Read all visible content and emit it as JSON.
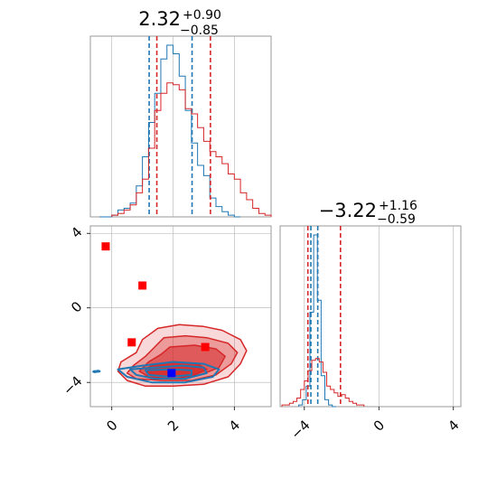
{
  "colors": {
    "red": "#d62728",
    "blue": "#1f77b4",
    "red_fill": "#d62728",
    "marker_red": "#ff0000",
    "marker_blue": "#0000ff",
    "grid": "#b0b0b0",
    "axes": "#808080"
  },
  "chart_data": [
    {
      "type": "histogram",
      "panel": "marginal-x",
      "title_main": "2.32",
      "title_plus": "+0.90",
      "title_minus": "−0.85",
      "xlim": [
        -0.7,
        5.2
      ],
      "grid": true,
      "series": [
        {
          "color": "blue",
          "bin_edges": [
            -0.4,
            -0.2,
            0.0,
            0.2,
            0.4,
            0.6,
            0.8,
            1.0,
            1.2,
            1.4,
            1.6,
            1.8,
            2.0,
            2.2,
            2.4,
            2.6,
            2.8,
            3.0,
            3.2,
            3.4,
            3.6,
            3.8,
            4.0,
            4.2
          ],
          "relative_heights": [
            0.0,
            0.0,
            0.01,
            0.04,
            0.05,
            0.08,
            0.18,
            0.35,
            0.55,
            0.72,
            0.92,
            1.0,
            0.95,
            0.82,
            0.62,
            0.43,
            0.3,
            0.24,
            0.11,
            0.06,
            0.03,
            0.01,
            0.0
          ],
          "quantile_lines": [
            1.22,
            2.62
          ]
        },
        {
          "color": "red",
          "bin_edges": [
            0.0,
            0.2,
            0.4,
            0.6,
            0.8,
            1.0,
            1.2,
            1.4,
            1.6,
            1.8,
            2.0,
            2.2,
            2.4,
            2.6,
            2.8,
            3.0,
            3.2,
            3.4,
            3.6,
            3.8,
            4.0,
            4.2,
            4.4,
            4.6,
            4.8,
            5.0,
            5.2
          ],
          "relative_heights": [
            0.01,
            0.02,
            0.04,
            0.07,
            0.14,
            0.22,
            0.4,
            0.62,
            0.72,
            0.78,
            0.77,
            0.74,
            0.63,
            0.6,
            0.52,
            0.44,
            0.38,
            0.35,
            0.31,
            0.25,
            0.22,
            0.14,
            0.1,
            0.05,
            0.02,
            0.01
          ],
          "quantile_lines": [
            1.47,
            3.22
          ]
        }
      ]
    },
    {
      "type": "contour",
      "panel": "joint",
      "xlim": [
        -0.7,
        5.2
      ],
      "ylim": [
        -5.3,
        4.4
      ],
      "xticks": [
        "0",
        "2",
        "4"
      ],
      "yticks": [
        "4",
        "0",
        "−4"
      ],
      "xtick_values": [
        0,
        2,
        4
      ],
      "ytick_values": [
        4,
        0,
        -4
      ],
      "grid": true,
      "red_contours": [
        {
          "level": 1,
          "points": [
            [
              1.5,
              -1.1
            ],
            [
              2.2,
              -0.9
            ],
            [
              3.0,
              -1.0
            ],
            [
              3.6,
              -1.2
            ],
            [
              4.2,
              -1.7
            ],
            [
              4.4,
              -2.3
            ],
            [
              4.2,
              -3.0
            ],
            [
              3.8,
              -3.7
            ],
            [
              3.0,
              -4.1
            ],
            [
              2.0,
              -4.2
            ],
            [
              1.1,
              -4.2
            ],
            [
              0.5,
              -3.9
            ],
            [
              0.2,
              -3.4
            ],
            [
              0.3,
              -2.9
            ],
            [
              0.8,
              -2.4
            ],
            [
              1.0,
              -1.7
            ]
          ]
        },
        {
          "level": 2,
          "points": [
            [
              1.7,
              -1.6
            ],
            [
              2.4,
              -1.5
            ],
            [
              3.1,
              -1.6
            ],
            [
              3.8,
              -1.9
            ],
            [
              4.1,
              -2.4
            ],
            [
              3.9,
              -3.0
            ],
            [
              3.4,
              -3.6
            ],
            [
              2.6,
              -3.9
            ],
            [
              1.6,
              -3.9
            ],
            [
              0.8,
              -3.8
            ],
            [
              0.5,
              -3.5
            ],
            [
              0.7,
              -3.1
            ],
            [
              1.1,
              -2.6
            ],
            [
              1.4,
              -2.1
            ]
          ]
        },
        {
          "level": 3,
          "points": [
            [
              1.9,
              -2.1
            ],
            [
              2.7,
              -2.0
            ],
            [
              3.4,
              -2.2
            ],
            [
              3.7,
              -2.6
            ],
            [
              3.5,
              -3.2
            ],
            [
              2.9,
              -3.6
            ],
            [
              2.0,
              -3.8
            ],
            [
              1.2,
              -3.7
            ],
            [
              0.9,
              -3.4
            ],
            [
              1.2,
              -2.9
            ],
            [
              1.6,
              -2.5
            ]
          ]
        },
        {
          "level": 4,
          "points": [
            [
              1.3,
              -3.1
            ],
            [
              2.0,
              -2.9
            ],
            [
              2.8,
              -3.0
            ],
            [
              3.1,
              -3.3
            ],
            [
              2.7,
              -3.6
            ],
            [
              1.9,
              -3.7
            ],
            [
              1.3,
              -3.6
            ],
            [
              1.1,
              -3.3
            ]
          ]
        }
      ],
      "blue_contours": [
        {
          "level": 1,
          "points": [
            [
              0.2,
              -3.3
            ],
            [
              1.0,
              -3.1
            ],
            [
              2.0,
              -2.9
            ],
            [
              3.0,
              -3.0
            ],
            [
              3.5,
              -3.3
            ],
            [
              3.3,
              -3.7
            ],
            [
              2.4,
              -4.0
            ],
            [
              1.3,
              -4.0
            ],
            [
              0.5,
              -3.7
            ]
          ]
        },
        {
          "level": 2,
          "points": [
            [
              0.6,
              -3.3
            ],
            [
              1.4,
              -3.2
            ],
            [
              2.3,
              -3.1
            ],
            [
              3.0,
              -3.2
            ],
            [
              3.1,
              -3.5
            ],
            [
              2.4,
              -3.8
            ],
            [
              1.4,
              -3.8
            ],
            [
              0.8,
              -3.6
            ]
          ]
        },
        {
          "level": 3,
          "points": [
            [
              1.1,
              -3.35
            ],
            [
              1.9,
              -3.3
            ],
            [
              2.6,
              -3.35
            ],
            [
              2.6,
              -3.6
            ],
            [
              1.9,
              -3.7
            ],
            [
              1.2,
              -3.6
            ]
          ]
        }
      ],
      "blue_outliers": [
        [
          -0.45,
          -3.4
        ],
        [
          -0.55,
          -3.42
        ]
      ],
      "red_markers": [
        [
          -0.2,
          3.3
        ],
        [
          1.0,
          1.2
        ],
        [
          0.65,
          -1.85
        ],
        [
          3.05,
          -2.1
        ]
      ],
      "blue_markers": [
        [
          1.95,
          -3.5
        ]
      ]
    },
    {
      "type": "histogram",
      "panel": "marginal-y",
      "title_main": "−3.22",
      "title_plus": "+1.16",
      "title_minus": "−0.59",
      "xlim": [
        -5.3,
        4.4
      ],
      "xticks": [
        "−4",
        "0",
        "4"
      ],
      "xtick_values": [
        -4,
        0,
        4
      ],
      "grid": true,
      "series": [
        {
          "color": "blue",
          "bin_edges": [
            -4.3,
            -4.1,
            -3.9,
            -3.7,
            -3.5,
            -3.3,
            -3.1,
            -2.9,
            -2.7,
            -2.5,
            -2.3
          ],
          "relative_heights": [
            0.01,
            0.04,
            0.12,
            0.55,
            1.0,
            0.62,
            0.18,
            0.04,
            0.01,
            0.0
          ],
          "quantile_lines": [
            -3.65,
            -3.28
          ]
        },
        {
          "color": "red",
          "bin_edges": [
            -5.2,
            -5.0,
            -4.8,
            -4.6,
            -4.4,
            -4.2,
            -4.0,
            -3.8,
            -3.6,
            -3.4,
            -3.2,
            -3.0,
            -2.8,
            -2.6,
            -2.4,
            -2.2,
            -2.0,
            -1.8,
            -1.6,
            -1.4,
            -1.2,
            -1.0,
            -0.8
          ],
          "relative_heights": [
            0.01,
            0.01,
            0.02,
            0.03,
            0.05,
            0.1,
            0.15,
            0.21,
            0.27,
            0.28,
            0.26,
            0.2,
            0.12,
            0.1,
            0.08,
            0.06,
            0.07,
            0.05,
            0.03,
            0.02,
            0.01,
            0.01
          ],
          "quantile_lines": [
            -3.81,
            -2.06
          ]
        }
      ]
    }
  ]
}
